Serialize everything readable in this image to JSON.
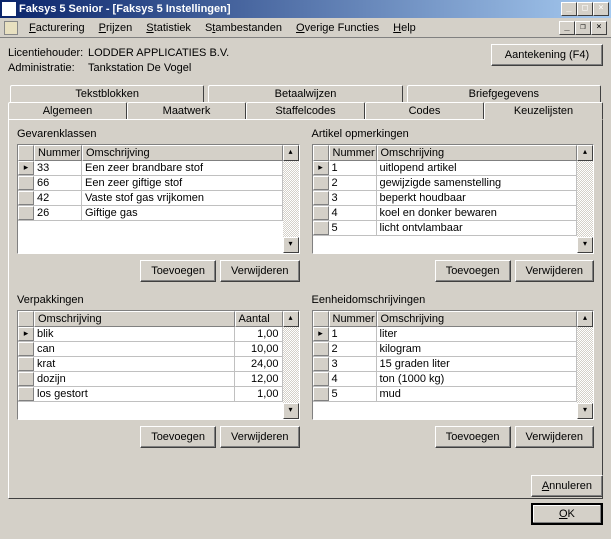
{
  "window": {
    "title": "Faksys 5 Senior - [Faksys 5 Instellingen]",
    "min": "0",
    "max": "1",
    "close": "r"
  },
  "menu": {
    "facturering": "Facturering",
    "prijzen": "Prijzen",
    "statistiek": "Statistiek",
    "stambestanden": "Stambestanden",
    "overige": "Overige Functies",
    "help": "Help"
  },
  "info": {
    "licentiehouder_label": "Licentiehouder:",
    "licentiehouder_value": "LODDER APPLICATIES B.V.",
    "administratie_label": "Administratie:",
    "administratie_value": "Tankstation De Vogel"
  },
  "aantekening_btn": "Aantekening (F4)",
  "tabs": {
    "tekstblokken": "Tekstblokken",
    "betaalwijzen": "Betaalwijzen",
    "briefgegevens": "Briefgegevens",
    "algemeen": "Algemeen",
    "maatwerk": "Maatwerk",
    "staffelcodes": "Staffelcodes",
    "codes": "Codes",
    "keuzelijsten": "Keuzelijsten"
  },
  "sections": {
    "gevarenklassen": "Gevarenklassen",
    "artikel_opm": "Artikel opmerkingen",
    "verpakkingen": "Verpakkingen",
    "eenheid": "Eenheidomschrijvingen"
  },
  "headers": {
    "nummer": "Nummer",
    "omschrijving": "Omschrijving",
    "aantal": "Aantal"
  },
  "gevaren": [
    {
      "n": "33",
      "o": "Een zeer brandbare stof"
    },
    {
      "n": "66",
      "o": "Een zeer giftige stof"
    },
    {
      "n": "42",
      "o": "Vaste stof gas vrijkomen"
    },
    {
      "n": "26",
      "o": "Giftige gas"
    }
  ],
  "artikel": [
    {
      "n": "1",
      "o": "uitlopend artikel"
    },
    {
      "n": "2",
      "o": "gewijzigde samenstelling"
    },
    {
      "n": "3",
      "o": "beperkt houdbaar"
    },
    {
      "n": "4",
      "o": "koel en donker bewaren"
    },
    {
      "n": "5",
      "o": "licht ontvlambaar"
    }
  ],
  "verpak": [
    {
      "o": "blik",
      "a": "1,00"
    },
    {
      "o": "can",
      "a": "10,00"
    },
    {
      "o": "krat",
      "a": "24,00"
    },
    {
      "o": "dozijn",
      "a": "12,00"
    },
    {
      "o": "los gestort",
      "a": "1,00"
    }
  ],
  "eenheden": [
    {
      "n": "1",
      "o": "liter"
    },
    {
      "n": "2",
      "o": "kilogram"
    },
    {
      "n": "3",
      "o": "15 graden liter"
    },
    {
      "n": "4",
      "o": "ton (1000 kg)"
    },
    {
      "n": "5",
      "o": "mud"
    }
  ],
  "buttons": {
    "toevoegen": "Toevoegen",
    "verwijderen": "Verwijderen",
    "annuleren": "Annuleren",
    "ok": "OK"
  }
}
